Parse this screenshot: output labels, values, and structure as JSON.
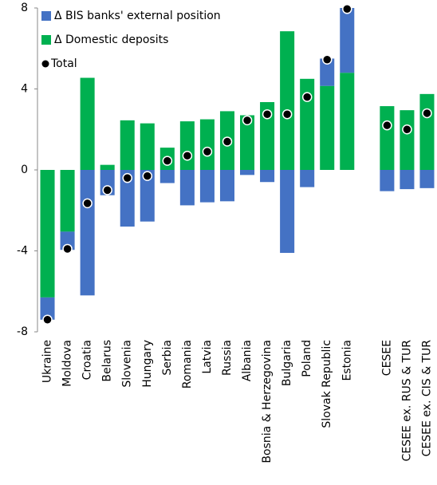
{
  "chart_data": {
    "type": "bar",
    "stacked": true,
    "categories": [
      "Ukraine",
      "Moldova",
      "Croatia",
      "Belarus",
      "Slovenia",
      "Hungary",
      "Serbia",
      "Romania",
      "Latvia",
      "Russia",
      "Albania",
      "Bosnia & Herzegovina",
      "Bulgaria",
      "Poland",
      "Slovak Republic",
      "Estonia",
      null,
      "CESEE",
      "CESEE ex. RUS & TUR",
      "CESEE ex. CIS & TUR"
    ],
    "series": [
      {
        "name": "Δ BIS banks' external position",
        "color": "#4472c4",
        "type": "bar",
        "values": [
          -1.1,
          -0.9,
          -6.2,
          -1.25,
          -2.8,
          -2.55,
          -0.65,
          -1.75,
          -1.6,
          -1.55,
          -0.25,
          -0.6,
          -4.1,
          -0.85,
          1.35,
          3.2,
          null,
          -1.05,
          -0.95,
          -0.9
        ]
      },
      {
        "name": "Δ Domestic deposits",
        "color": "#00b050",
        "type": "bar",
        "values": [
          -6.3,
          -3.05,
          4.55,
          0.25,
          2.45,
          2.3,
          1.1,
          2.4,
          2.5,
          2.9,
          2.7,
          3.35,
          6.85,
          4.5,
          4.15,
          4.8,
          null,
          3.15,
          2.95,
          3.75
        ]
      },
      {
        "name": "Total",
        "color": "#000000",
        "type": "scatter",
        "values": [
          -7.4,
          -3.9,
          -1.65,
          -1.0,
          -0.4,
          -0.3,
          0.45,
          0.7,
          0.9,
          1.4,
          2.45,
          2.75,
          2.75,
          3.6,
          5.45,
          7.95,
          null,
          2.2,
          2.0,
          2.8
        ]
      }
    ],
    "ylim": [
      -8,
      8
    ],
    "yticks": [
      -8,
      -4,
      0,
      4,
      8
    ],
    "grid": false,
    "legend": "top-left"
  }
}
